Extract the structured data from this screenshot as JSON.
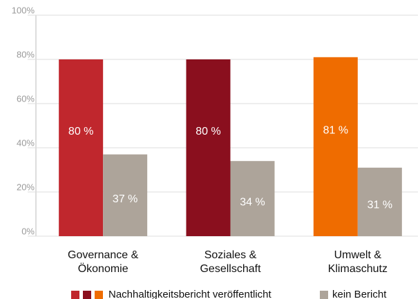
{
  "chart_data": {
    "type": "bar",
    "categories": [
      [
        "Governance &",
        "Ökonomie"
      ],
      [
        "Soziales &",
        "Gesellschaft"
      ],
      [
        "Umwelt &",
        "Klimaschutz"
      ]
    ],
    "series": [
      {
        "name": "Nachhaltigkeitsbericht veröffentlicht",
        "colors": [
          "#c0272d",
          "#8a0f1e",
          "#ef6c00"
        ],
        "values": [
          80,
          80,
          81
        ],
        "value_labels": [
          "80 %",
          "80 %",
          "81 %"
        ]
      },
      {
        "name": "kein Bericht",
        "color": "#ada49a",
        "values": [
          37,
          34,
          31
        ],
        "value_labels": [
          "37 %",
          "34 %",
          "31 %"
        ]
      }
    ],
    "ylim": [
      0,
      100
    ],
    "yticks": [
      {
        "value": 0,
        "label": "0%"
      },
      {
        "value": 20,
        "label": "20%"
      },
      {
        "value": 40,
        "label": "40%"
      },
      {
        "value": 60,
        "label": "60%"
      },
      {
        "value": 80,
        "label": "80%"
      },
      {
        "value": 100,
        "label": "100%"
      }
    ],
    "grid": true
  }
}
